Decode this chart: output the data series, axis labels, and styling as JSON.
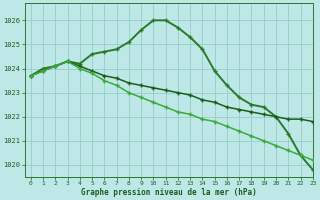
{
  "background_color": "#bee8e8",
  "grid_color": "#90c8c0",
  "xlabel": "Graphe pression niveau de la mer (hPa)",
  "ylim": [
    1019.5,
    1026.7
  ],
  "xlim": [
    -0.5,
    23
  ],
  "yticks": [
    1020,
    1021,
    1022,
    1023,
    1024,
    1025,
    1026
  ],
  "xticks": [
    0,
    1,
    2,
    3,
    4,
    5,
    6,
    7,
    8,
    9,
    10,
    11,
    12,
    13,
    14,
    15,
    16,
    17,
    18,
    19,
    20,
    21,
    22,
    23
  ],
  "series": [
    {
      "x": [
        0,
        1,
        2,
        3,
        4,
        5,
        6,
        7,
        8,
        9,
        10,
        11,
        12,
        13,
        14,
        15,
        16,
        17,
        18,
        19,
        20,
        21,
        22,
        23
      ],
      "y": [
        1023.7,
        1024.0,
        1024.1,
        1024.3,
        1024.2,
        1024.6,
        1024.7,
        1024.8,
        1025.1,
        1025.6,
        1026.0,
        1026.0,
        1025.7,
        1025.3,
        1024.8,
        1023.9,
        1023.3,
        1022.8,
        1022.5,
        1022.4,
        1022.0,
        1021.3,
        1020.4,
        1019.8
      ],
      "color": "#2a7a2a",
      "lw": 1.4,
      "marker": "+"
    },
    {
      "x": [
        0,
        1,
        2,
        3,
        4,
        5,
        6,
        7,
        8,
        9,
        10,
        11,
        12,
        13,
        14,
        15,
        16,
        17,
        18,
        19,
        20,
        21,
        22,
        23
      ],
      "y": [
        1023.7,
        1023.9,
        1024.1,
        1024.3,
        1024.1,
        1023.9,
        1023.7,
        1023.6,
        1023.4,
        1023.3,
        1023.2,
        1023.1,
        1023.0,
        1022.9,
        1022.7,
        1022.6,
        1022.4,
        1022.3,
        1022.2,
        1022.1,
        1022.0,
        1021.9,
        1021.9,
        1021.8
      ],
      "color": "#1a5e1a",
      "lw": 1.1,
      "marker": "+"
    },
    {
      "x": [
        0,
        1,
        2,
        3,
        4,
        5,
        6,
        7,
        8,
        9,
        10,
        11,
        12,
        13,
        14,
        15,
        16,
        17,
        18,
        19,
        20,
        21,
        22,
        23
      ],
      "y": [
        1023.7,
        1023.9,
        1024.1,
        1024.3,
        1024.0,
        1023.8,
        1023.5,
        1023.3,
        1023.0,
        1022.8,
        1022.6,
        1022.4,
        1022.2,
        1022.1,
        1021.9,
        1021.8,
        1021.6,
        1021.4,
        1021.2,
        1021.0,
        1020.8,
        1020.6,
        1020.4,
        1020.2
      ],
      "color": "#3aaa3a",
      "lw": 1.1,
      "marker": "+"
    }
  ]
}
